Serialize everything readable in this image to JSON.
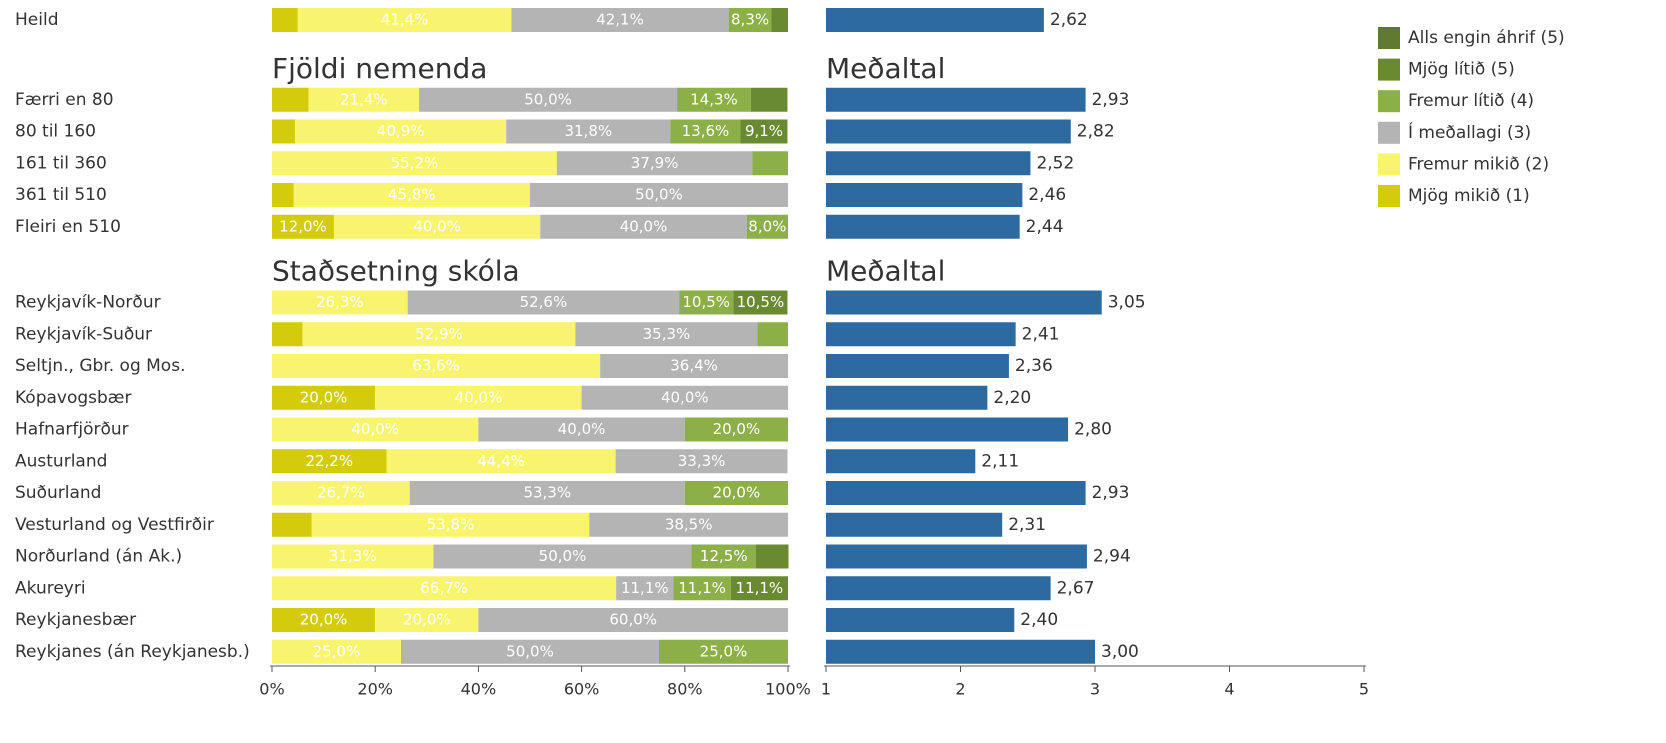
{
  "chart_data": [
    {
      "type": "stacked_bar",
      "section_titles": [
        "Fjöldi nemenda",
        "Staðsetning skóla"
      ],
      "categories": [
        "Heild",
        "Færri en 80",
        "80 til 160",
        "161 til 360",
        "361 til 510",
        "Fleiri en 510",
        "Reykjavík-Norður",
        "Reykjavík-Suður",
        "Seltjn., Gbr. og Mos.",
        "Kópavogsbær",
        "Hafnarfjörður",
        "Austurland",
        "Suðurland",
        "Vesturland og Vestfirðir",
        "Norðurland (án Ak.)",
        "Akureyri",
        "Reykjanesbær",
        "Reykjanes (án Reykjanesb.)"
      ],
      "xlim": [
        0,
        100
      ],
      "xticks": [
        {
          "value": 0,
          "label": "0%"
        },
        {
          "value": 20,
          "label": "20%"
        },
        {
          "value": 40,
          "label": "40%"
        },
        {
          "value": 60,
          "label": "60%"
        },
        {
          "value": 80,
          "label": "80%"
        },
        {
          "value": 100,
          "label": "100%"
        }
      ],
      "series": [
        {
          "name": "Mjög mikið (1)",
          "color": "#d4cb0a",
          "values": [
            5.0,
            7.1,
            4.5,
            null,
            4.2,
            12.0,
            null,
            5.9,
            null,
            20.0,
            null,
            22.2,
            null,
            7.7,
            null,
            null,
            20.0,
            null
          ],
          "value_labels": [
            null,
            null,
            null,
            null,
            null,
            "12,0%",
            null,
            null,
            null,
            "20,0%",
            null,
            "22,2%",
            null,
            null,
            null,
            null,
            "20,0%",
            null
          ]
        },
        {
          "name": "Fremur mikið (2)",
          "color": "#f8f46e",
          "values": [
            41.4,
            21.4,
            40.9,
            55.2,
            45.8,
            40.0,
            26.3,
            52.9,
            63.6,
            40.0,
            40.0,
            44.4,
            26.7,
            53.8,
            31.3,
            66.7,
            20.0,
            25.0
          ],
          "value_labels": [
            "41,4%",
            "21,4%",
            "40,9%",
            "55,2%",
            "45,8%",
            "40,0%",
            "26,3%",
            "52,9%",
            "63,6%",
            "40,0%",
            "40,0%",
            "44,4%",
            "26,7%",
            "53,8%",
            "31,3%",
            "66,7%",
            "20,0%",
            "25,0%"
          ]
        },
        {
          "name": "Í meðallagi (3)",
          "color": "#b4b4b4",
          "values": [
            42.1,
            50.0,
            31.8,
            37.9,
            50.0,
            40.0,
            52.6,
            35.3,
            36.4,
            40.0,
            40.0,
            33.3,
            53.3,
            38.5,
            50.0,
            11.1,
            60.0,
            50.0
          ],
          "value_labels": [
            "42,1%",
            "50,0%",
            "31,8%",
            "37,9%",
            "50,0%",
            "40,0%",
            "52,6%",
            "35,3%",
            "36,4%",
            "40,0%",
            "40,0%",
            "33,3%",
            "53,3%",
            "38,5%",
            "50,0%",
            "11,1%",
            "60,0%",
            "50,0%"
          ]
        },
        {
          "name": "Fremur lítið (4)",
          "color": "#8caf47",
          "values": [
            8.3,
            14.3,
            13.6,
            6.9,
            null,
            8.0,
            10.5,
            5.9,
            null,
            null,
            20.0,
            null,
            20.0,
            null,
            12.5,
            11.1,
            null,
            25.0
          ],
          "value_labels": [
            "8,3%",
            "14,3%",
            "13,6%",
            null,
            null,
            "8,0%",
            "10,5%",
            null,
            null,
            null,
            "20,0%",
            null,
            "20,0%",
            null,
            "12,5%",
            "11,1%",
            null,
            "25,0%"
          ]
        },
        {
          "name": "Mjög lítið (5)",
          "color": "#6a8a32",
          "values": [
            3.2,
            7.1,
            9.1,
            null,
            null,
            null,
            10.5,
            null,
            null,
            null,
            null,
            null,
            null,
            null,
            6.3,
            11.1,
            null,
            null
          ],
          "value_labels": [
            null,
            null,
            "9,1%",
            null,
            null,
            null,
            "10,5%",
            null,
            null,
            null,
            null,
            null,
            null,
            null,
            null,
            "11,1%",
            null,
            null
          ]
        },
        {
          "name": "Alls engin áhrif (5)",
          "color": "#5e7a2e",
          "values": [
            null,
            null,
            null,
            null,
            null,
            null,
            null,
            null,
            null,
            null,
            null,
            null,
            null,
            null,
            null,
            null,
            null,
            null
          ],
          "value_labels": [
            null,
            null,
            null,
            null,
            null,
            null,
            null,
            null,
            null,
            null,
            null,
            null,
            null,
            null,
            null,
            null,
            null,
            null
          ]
        }
      ]
    },
    {
      "type": "bar",
      "section_titles": [
        "Meðaltal",
        "Meðaltal"
      ],
      "color": "#2d6a9f",
      "xlim": [
        1,
        5
      ],
      "xticks": [
        1,
        2,
        3,
        4,
        5
      ],
      "values": [
        2.62,
        2.93,
        2.82,
        2.52,
        2.46,
        2.44,
        3.05,
        2.41,
        2.36,
        2.2,
        2.8,
        2.11,
        2.93,
        2.31,
        2.94,
        2.67,
        2.4,
        3.0
      ],
      "value_labels": [
        "2,62",
        "2,93",
        "2,82",
        "2,52",
        "2,46",
        "2,44",
        "3,05",
        "2,41",
        "2,36",
        "2,20",
        "2,80",
        "2,11",
        "2,93",
        "2,31",
        "2,94",
        "2,67",
        "2,40",
        "3,00"
      ]
    }
  ]
}
